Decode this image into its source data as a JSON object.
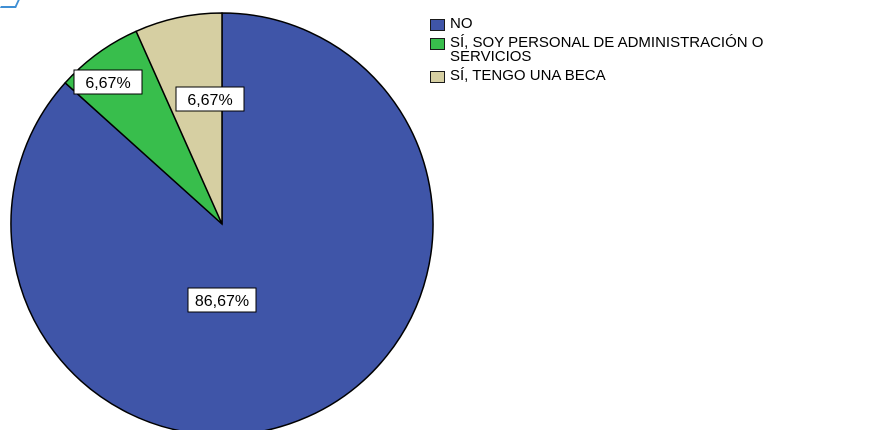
{
  "chart_data": {
    "type": "pie",
    "title": "",
    "slices": [
      {
        "label": "NO",
        "value": 86.67,
        "display": "86,67%",
        "color": "#3F55A8"
      },
      {
        "label": "SÍ, SOY PERSONAL DE ADMINISTRACIÓN O SERVICIOS",
        "value": 6.67,
        "display": "6,67%",
        "color": "#38BE4C"
      },
      {
        "label": "SÍ, TENGO UNA BECA",
        "value": 6.67,
        "display": "6,67%",
        "color": "#D6CFA2"
      }
    ],
    "legend": {
      "placement": "top-right",
      "items": [
        {
          "label": "NO",
          "color": "#3F55A8"
        },
        {
          "label_lines": [
            "SÍ, SOY PERSONAL DE ADMINISTRACIÓN O",
            "SERVICIOS"
          ],
          "color": "#38BE4C"
        },
        {
          "label": "SÍ, TENGO UNA BECA",
          "color": "#D6CFA2"
        }
      ]
    }
  }
}
